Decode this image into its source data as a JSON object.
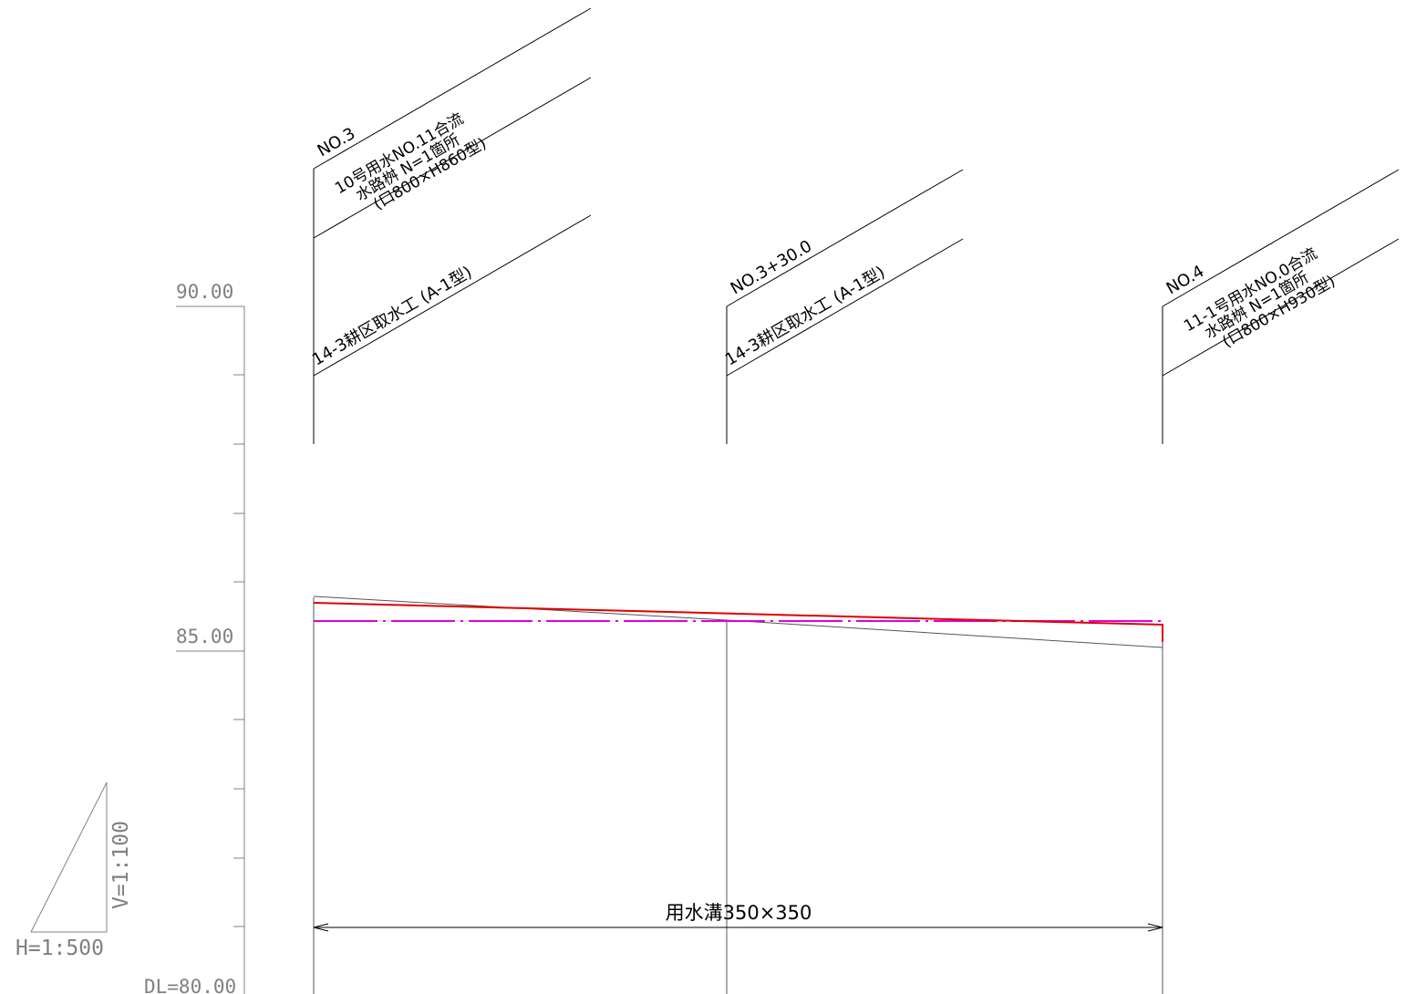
{
  "scale": {
    "h": "H=1:500",
    "v": "V=1:100",
    "datum": "DL=80.00"
  },
  "elevation_labels": [
    {
      "text": "90.00",
      "value": 90.0
    },
    {
      "text": "85.00",
      "value": 85.0
    }
  ],
  "stations": [
    {
      "id": "no3",
      "name": "NO.3",
      "notes": [
        "10号用水NO.11合流",
        "水路桝  N=1箇所",
        "(口800×H860型)"
      ],
      "structure": "14-3耕区取水工 (A-1型)"
    },
    {
      "id": "no3p30",
      "name": "NO.3+30.0",
      "notes": [],
      "structure": "14-3耕区取水工 (A-1型)"
    },
    {
      "id": "no4",
      "name": "NO.4",
      "notes": [
        "11-1号用水NO.0合流",
        "水路桝  N=1箇所",
        "(口800×H930型)"
      ],
      "structure": ""
    }
  ],
  "channel_label": "用水溝350×350",
  "colors": {
    "design_line": "#e00000",
    "water_line": "#e000e0",
    "ground_line": "#000000",
    "axis": "#808080"
  }
}
